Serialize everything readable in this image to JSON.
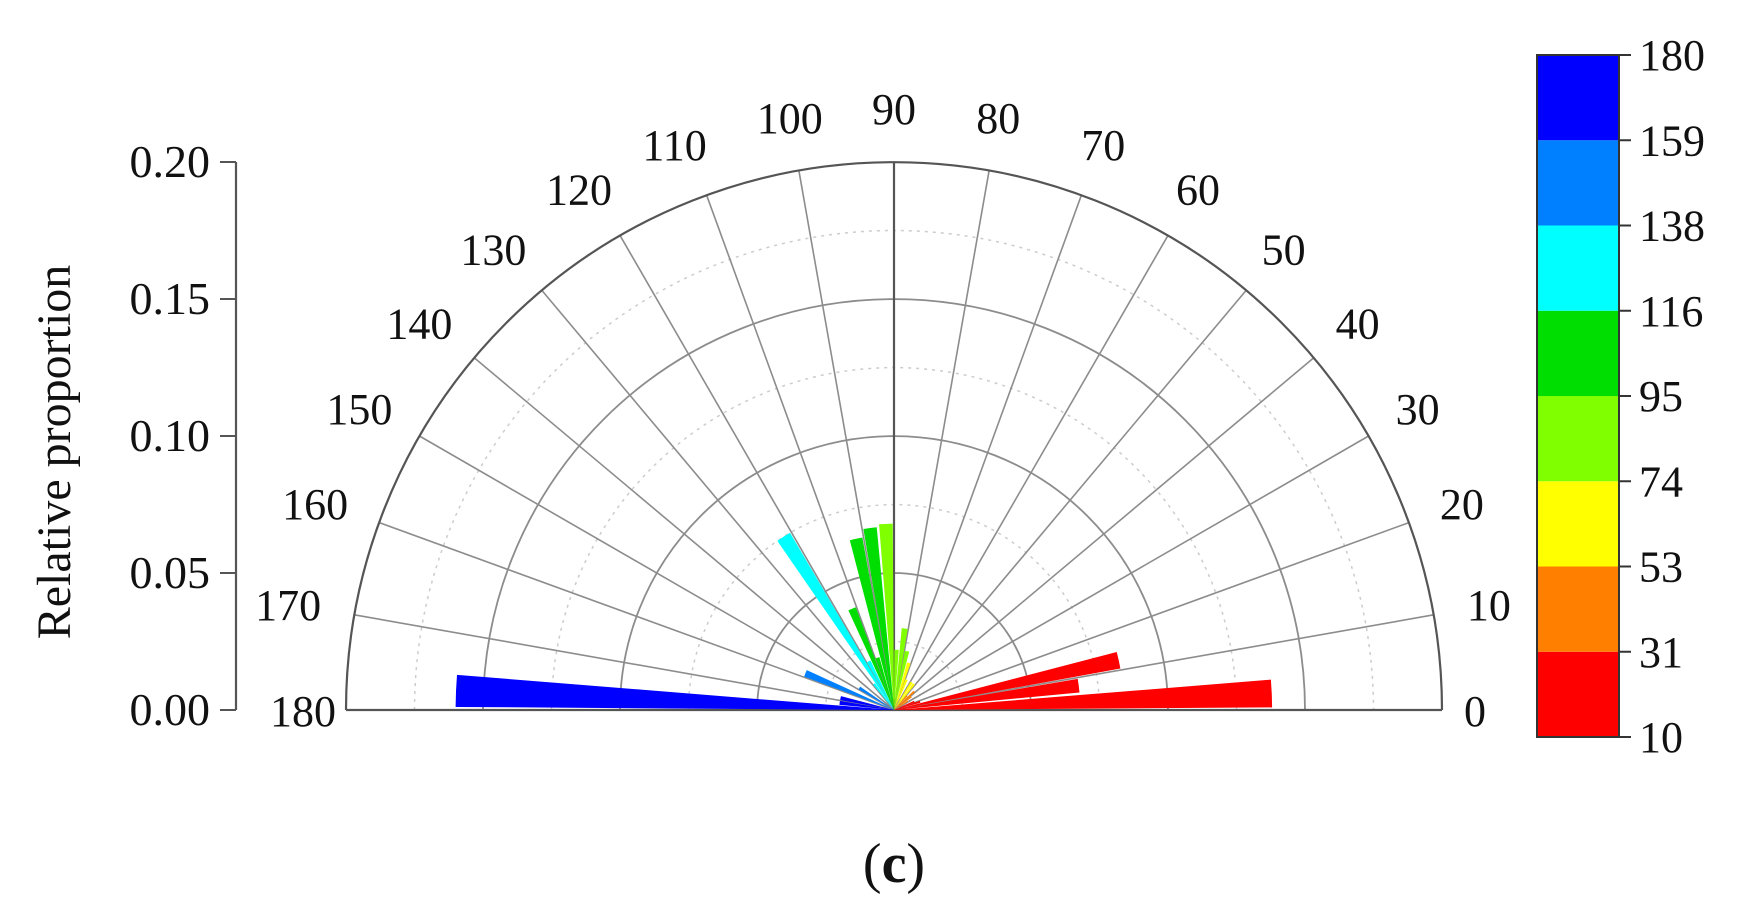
{
  "chart_data": {
    "type": "polar-bar",
    "title": "",
    "ylabel": "Relative proportion",
    "ylim": [
      0,
      0.2
    ],
    "yticks": [
      "0.00",
      "0.05",
      "0.10",
      "0.15",
      "0.20"
    ],
    "angle_range": [
      0,
      180
    ],
    "angle_ticks": [
      "0",
      "10",
      "20",
      "30",
      "40",
      "50",
      "60",
      "70",
      "80",
      "90",
      "100",
      "110",
      "120",
      "130",
      "140",
      "150",
      "160",
      "170",
      "180"
    ],
    "grid": true,
    "panel_label_open": "(",
    "panel_label": "c",
    "panel_label_close": ")",
    "bins": [
      {
        "start": 0,
        "end": 5,
        "value": 0.138
      },
      {
        "start": 5,
        "end": 10,
        "value": 0.068
      },
      {
        "start": 10,
        "end": 15,
        "value": 0.084
      },
      {
        "start": 15,
        "end": 20,
        "value": 0.01
      },
      {
        "start": 20,
        "end": 25,
        "value": 0.008
      },
      {
        "start": 30,
        "end": 35,
        "value": 0.006
      },
      {
        "start": 35,
        "end": 40,
        "value": 0.008
      },
      {
        "start": 40,
        "end": 45,
        "value": 0.01
      },
      {
        "start": 45,
        "end": 50,
        "value": 0.007
      },
      {
        "start": 50,
        "end": 55,
        "value": 0.012
      },
      {
        "start": 55,
        "end": 60,
        "value": 0.012
      },
      {
        "start": 65,
        "end": 70,
        "value": 0.012
      },
      {
        "start": 70,
        "end": 75,
        "value": 0.018
      },
      {
        "start": 75,
        "end": 80,
        "value": 0.022
      },
      {
        "start": 80,
        "end": 85,
        "value": 0.03
      },
      {
        "start": 85,
        "end": 90,
        "value": 0.022
      },
      {
        "start": 90,
        "end": 95,
        "value": 0.068
      },
      {
        "start": 95,
        "end": 100,
        "value": 0.067
      },
      {
        "start": 100,
        "end": 105,
        "value": 0.064
      },
      {
        "start": 105,
        "end": 110,
        "value": 0.02
      },
      {
        "start": 110,
        "end": 115,
        "value": 0.04
      },
      {
        "start": 115,
        "end": 120,
        "value": 0.02
      },
      {
        "start": 120,
        "end": 125,
        "value": 0.075
      },
      {
        "start": 125,
        "end": 130,
        "value": 0.012
      },
      {
        "start": 145,
        "end": 150,
        "value": 0.015
      },
      {
        "start": 155,
        "end": 160,
        "value": 0.035
      },
      {
        "start": 165,
        "end": 170,
        "value": 0.02
      },
      {
        "start": 170,
        "end": 175,
        "value": 0.02
      },
      {
        "start": 175,
        "end": 180,
        "value": 0.16
      }
    ],
    "colorbar": {
      "ticks": [
        "10",
        "31",
        "53",
        "74",
        "95",
        "116",
        "138",
        "159",
        "180"
      ],
      "colors": [
        "#ff0000",
        "#ff8000",
        "#ffff00",
        "#80ff00",
        "#00dd00",
        "#00ffff",
        "#0080ff",
        "#0000ff"
      ]
    }
  }
}
